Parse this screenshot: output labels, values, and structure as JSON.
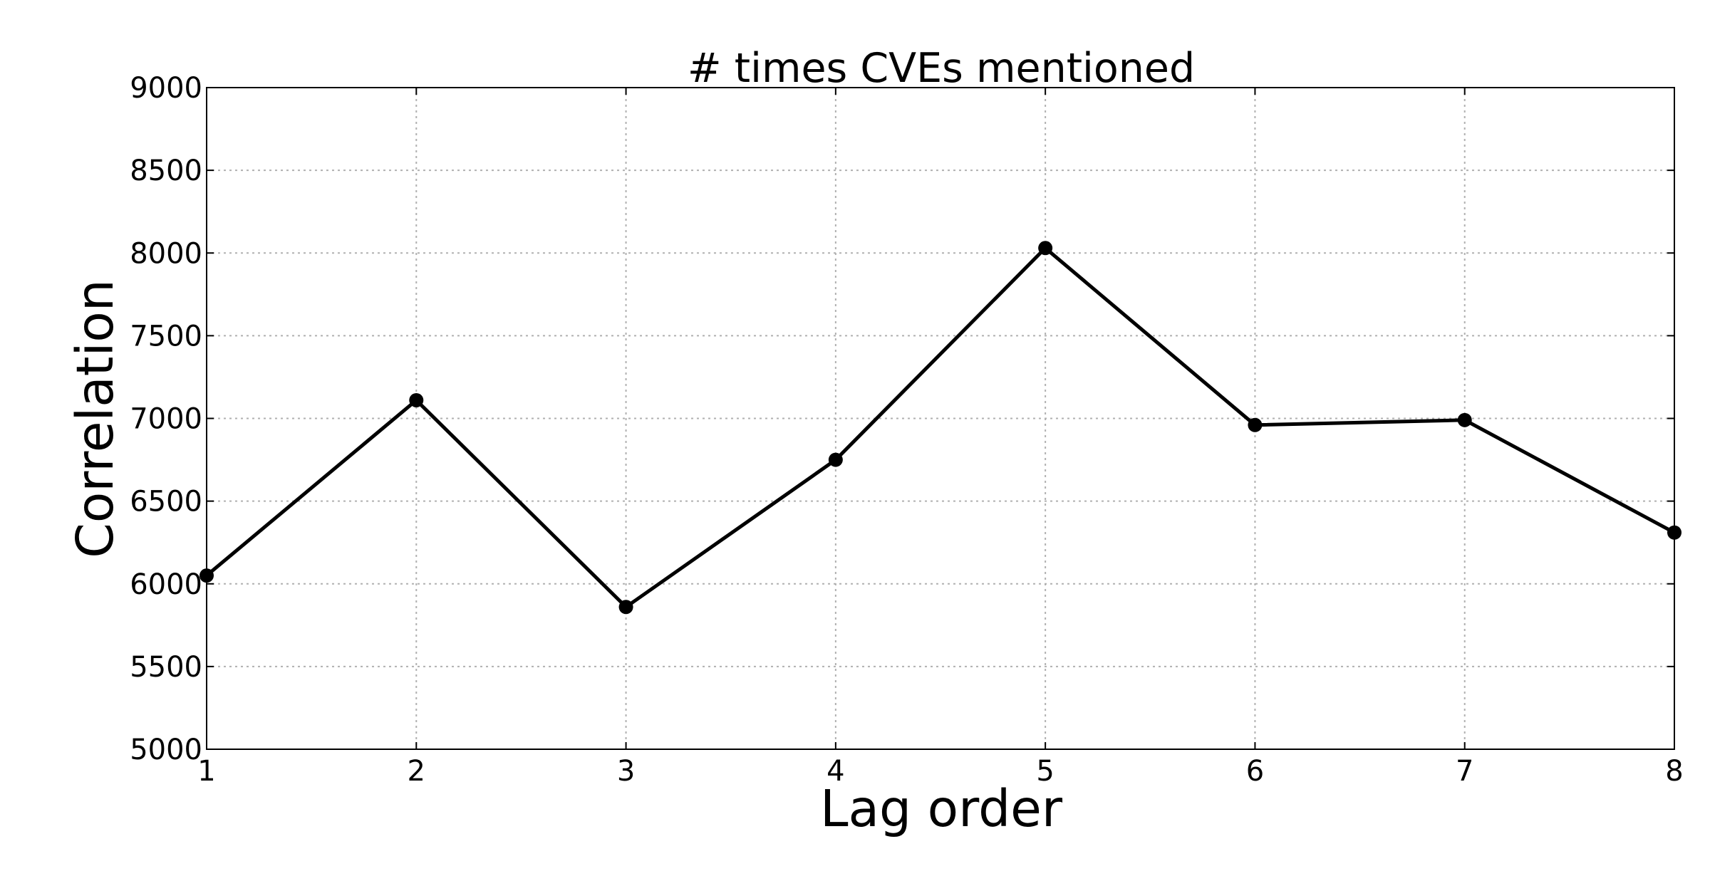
{
  "chart_data": {
    "type": "line",
    "title": "# times CVEs mentioned",
    "xlabel": "Lag order",
    "ylabel": "Correlation",
    "xlim": [
      1,
      8
    ],
    "ylim": [
      5000,
      9000
    ],
    "x_ticks": [
      "1",
      "2",
      "3",
      "4",
      "5",
      "6",
      "7",
      "8"
    ],
    "y_ticks": [
      "5000",
      "5500",
      "6000",
      "6500",
      "7000",
      "7500",
      "8000",
      "8500",
      "9000"
    ],
    "grid": true,
    "series": [
      {
        "x": [
          1,
          2,
          3,
          4,
          5,
          6,
          7,
          8
        ],
        "values": [
          6050,
          7110,
          5860,
          6750,
          8030,
          6960,
          6990,
          6310
        ],
        "color": "#000000",
        "marker": "circle"
      }
    ]
  }
}
